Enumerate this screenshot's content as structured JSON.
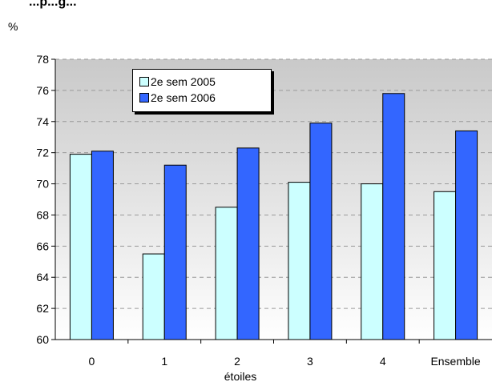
{
  "chart_data": {
    "type": "bar",
    "title": "",
    "title_fragment": "...p...g...",
    "ylabel": "%",
    "xlabel": "étoiles",
    "ylim": [
      60,
      78
    ],
    "yticks": [
      "60",
      "62",
      "64",
      "66",
      "68",
      "70",
      "72",
      "74",
      "76",
      "78"
    ],
    "grid": true,
    "legend_position": "top-left",
    "categories": [
      "0",
      "1",
      "2",
      "3",
      "4",
      "Ensemble"
    ],
    "series": [
      {
        "name": "2e sem 2005",
        "color": "#ccffff",
        "values": [
          71.9,
          65.5,
          68.5,
          70.1,
          70.0,
          69.5
        ]
      },
      {
        "name": "2e sem 2006",
        "color": "#3366ff",
        "values": [
          72.1,
          71.2,
          72.3,
          73.9,
          75.8,
          73.4
        ]
      }
    ]
  }
}
